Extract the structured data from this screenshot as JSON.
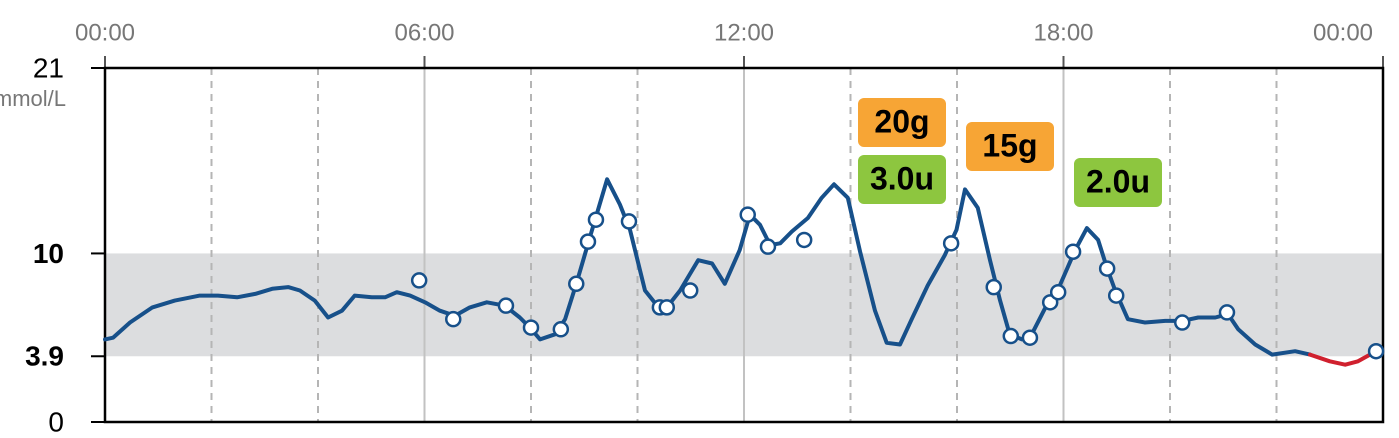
{
  "chart_data": {
    "type": "line",
    "y_label": "mmol/L",
    "xlim": [
      0,
      24
    ],
    "xticks": [
      {
        "value": 0,
        "label": "00:00"
      },
      {
        "value": 6,
        "label": "06:00"
      },
      {
        "value": 12,
        "label": "12:00"
      },
      {
        "value": 18,
        "label": "18:00"
      },
      {
        "value": 24,
        "label": "00:00"
      }
    ],
    "xgrid_minor": [
      2,
      4,
      8,
      10,
      14,
      16,
      20,
      22
    ],
    "ylim": [
      0,
      21
    ],
    "yticks": [
      0,
      3.9,
      10,
      21
    ],
    "target_range": [
      3.9,
      10
    ],
    "color": "#17508a",
    "low_color": "#d0202e",
    "x": [
      0,
      0.15,
      0.47,
      0.89,
      1.31,
      1.78,
      2.12,
      2.48,
      2.82,
      3.14,
      3.44,
      3.66,
      3.94,
      4.19,
      4.45,
      4.69,
      5.01,
      5.26,
      5.48,
      5.73,
      6.01,
      6.29,
      6.57,
      6.85,
      7.17,
      7.51,
      7.79,
      7.98,
      8.17,
      8.45,
      8.64,
      8.85,
      9.11,
      9.43,
      9.67,
      9.86,
      10.14,
      10.37,
      10.55,
      10.8,
      11.14,
      11.4,
      11.64,
      11.92,
      12.11,
      12.3,
      12.49,
      12.68,
      12.9,
      13.2,
      13.46,
      13.69,
      13.95,
      14.18,
      14.46,
      14.68,
      14.93,
      15.15,
      15.45,
      15.77,
      15.99,
      16.15,
      16.39,
      16.62,
      16.81,
      16.99,
      17.22,
      17.37,
      17.71,
      17.93,
      18.22,
      18.44,
      18.65,
      18.82,
      18.97,
      19.21,
      19.53,
      19.91,
      20.23,
      20.53,
      20.85,
      21.09,
      21.28,
      21.6,
      21.92,
      22.35,
      22.63,
      23.0,
      23.29,
      23.53,
      23.87
    ],
    "values": [
      4.9,
      5.0,
      5.9,
      6.8,
      7.2,
      7.5,
      7.5,
      7.4,
      7.6,
      7.9,
      8.0,
      7.8,
      7.2,
      6.2,
      6.6,
      7.5,
      7.4,
      7.4,
      7.7,
      7.5,
      7.1,
      6.6,
      6.3,
      6.8,
      7.1,
      6.9,
      6.2,
      5.6,
      4.9,
      5.2,
      6.1,
      8.2,
      11.0,
      14.4,
      12.9,
      11.4,
      7.8,
      6.9,
      6.8,
      7.8,
      9.6,
      9.4,
      8.2,
      10.2,
      12.3,
      11.7,
      10.5,
      10.6,
      11.3,
      12.1,
      13.3,
      14.1,
      13.3,
      10.1,
      6.6,
      4.7,
      4.6,
      6.1,
      8.1,
      9.9,
      11.4,
      13.8,
      12.7,
      9.6,
      7.2,
      5.2,
      4.9,
      5.0,
      7.1,
      8.1,
      10.2,
      11.5,
      10.8,
      9.1,
      7.8,
      6.1,
      5.9,
      6.0,
      6.0,
      6.2,
      6.2,
      6.4,
      5.5,
      4.6,
      4.0,
      4.2,
      4.0,
      3.6,
      3.4,
      3.6,
      4.2
    ],
    "readings": {
      "x": [
        5.9,
        6.54,
        7.53,
        8.0,
        8.56,
        8.85,
        9.07,
        9.22,
        9.84,
        10.42,
        10.55,
        10.99,
        12.07,
        12.45,
        13.13,
        15.89,
        16.69,
        17.01,
        17.37,
        17.75,
        17.9,
        18.18,
        18.82,
        18.99,
        20.23,
        21.07,
        23.87
      ],
      "values": [
        8.4,
        6.1,
        6.9,
        5.6,
        5.5,
        8.2,
        10.7,
        12.0,
        11.9,
        6.8,
        6.8,
        7.8,
        12.3,
        10.4,
        10.8,
        10.6,
        8.0,
        5.1,
        5.0,
        7.1,
        7.7,
        10.1,
        9.1,
        7.5,
        5.9,
        6.5,
        4.2
      ]
    },
    "annotations": [
      {
        "text": "20g",
        "color": "#f7a535"
      },
      {
        "text": "3.0u",
        "color": "#8dc63f"
      },
      {
        "text": "15g",
        "color": "#f7a535"
      },
      {
        "text": "2.0u",
        "color": "#8dc63f"
      }
    ]
  }
}
